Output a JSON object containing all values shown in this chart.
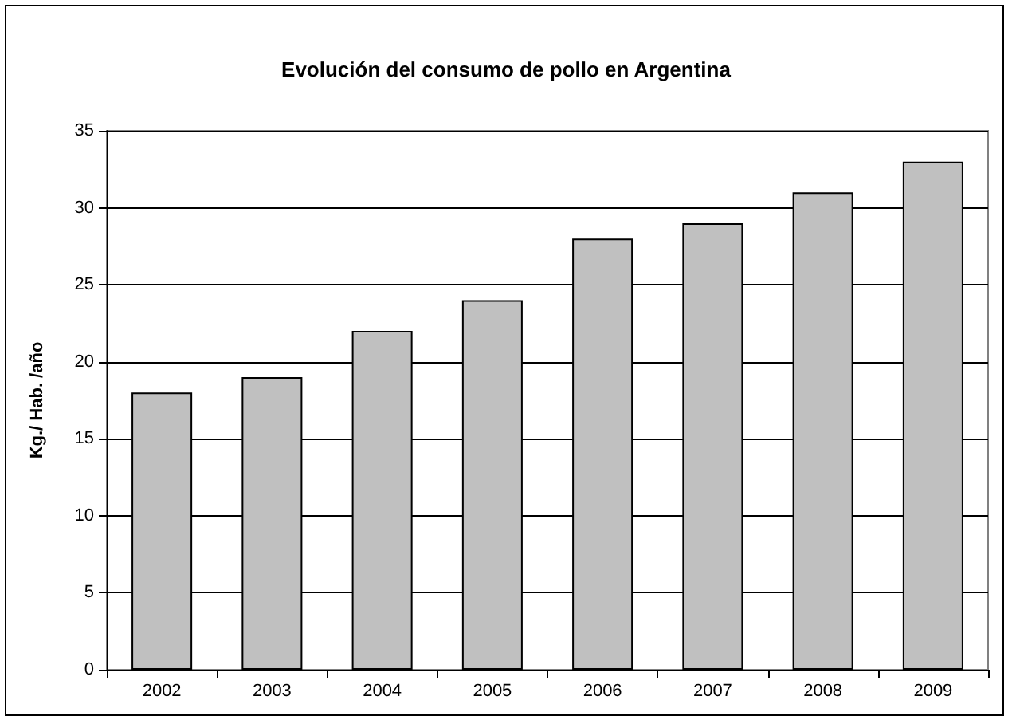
{
  "chart_data": {
    "type": "bar",
    "title": "Evolución del consumo de pollo en Argentina",
    "ylabel": "Kg./ Hab. /año",
    "categories": [
      "2002",
      "2003",
      "2004",
      "2005",
      "2006",
      "2007",
      "2008",
      "2009"
    ],
    "values": [
      18,
      19,
      22,
      24,
      28,
      29,
      31,
      33
    ],
    "color": "#c0c0c0",
    "ylim": [
      0,
      35
    ],
    "yticks": [
      0,
      5,
      10,
      15,
      20,
      25,
      30,
      35
    ],
    "grid": "y"
  }
}
